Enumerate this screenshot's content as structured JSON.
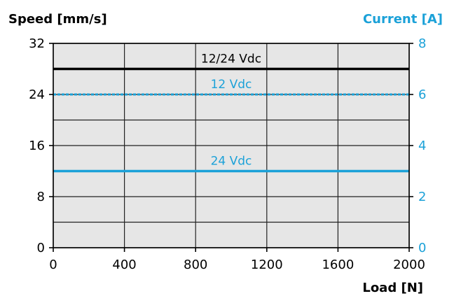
{
  "chart_data": {
    "type": "line",
    "xlabel": "Load [N]",
    "ylabel_left": "Speed [mm/s]",
    "ylabel_right": "Current [A]",
    "xlim": [
      0,
      2000
    ],
    "ylim_left": [
      0,
      32
    ],
    "ylim_right": [
      0,
      8
    ],
    "x_ticks": [
      0,
      400,
      800,
      1200,
      1600,
      2000
    ],
    "y_ticks_left": [
      0,
      8,
      16,
      24,
      32
    ],
    "y_ticks_right": [
      0,
      2,
      4,
      6,
      8
    ],
    "grid": true,
    "background_color": "#e6e6e6",
    "accent_color": "#1ba1d8",
    "series": [
      {
        "name": "12/24 Vdc",
        "axis": "left",
        "style": "solid",
        "color": "#000000",
        "x": [
          0,
          2000
        ],
        "y": [
          28,
          28
        ]
      },
      {
        "name": "12 Vdc",
        "axis": "right",
        "style": "dashed",
        "color": "#1ba1d8",
        "x": [
          0,
          2000
        ],
        "y": [
          6,
          6
        ]
      },
      {
        "name": "24 Vdc",
        "axis": "right",
        "style": "solid",
        "color": "#1ba1d8",
        "x": [
          0,
          2000
        ],
        "y": [
          3,
          3
        ]
      }
    ]
  }
}
